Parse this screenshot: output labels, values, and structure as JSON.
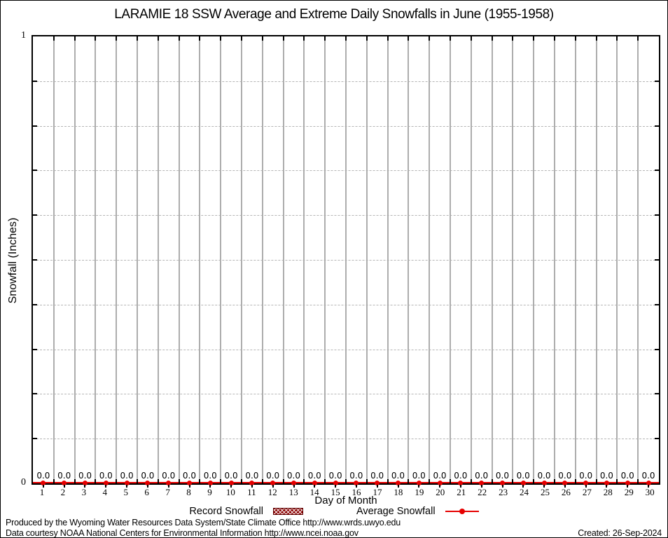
{
  "title": "LARAMIE 18 SSW Average and Extreme Daily Snowfalls in June (1955-1958)",
  "y_axis": {
    "label": "Snowfall (Inches)",
    "top_tick": "1",
    "bottom_tick": "0",
    "min": 0,
    "max": 1
  },
  "x_axis": {
    "label": "Day of Month"
  },
  "legend": {
    "record_label": "Record Snowfall",
    "average_label": "Average Snowfall"
  },
  "footer": {
    "line1": "Produced by the Wyoming Water Resources Data System/State Climate Office http://www.wrds.uwyo.edu",
    "line2": "Data courtesy NOAA National Centers for Environmental Information http://www.ncei.noaa.gov",
    "created": "Created: 26-Sep-2024"
  },
  "colors": {
    "series_red": "#e60000",
    "record_hatch": "#8b0000",
    "grid_gray": "#adadad",
    "dashed_gray": "#b6b6b6"
  },
  "chart_data": {
    "type": "line",
    "title": "LARAMIE 18 SSW Average and Extreme Daily Snowfalls in June (1955-1958)",
    "xlabel": "Day of Month",
    "ylabel": "Snowfall (Inches)",
    "ylim": [
      0,
      1
    ],
    "y_major_ticks": [
      0,
      1
    ],
    "y_grid_interval": 0.1,
    "grid": true,
    "legend_position": "bottom-center",
    "point_label_format": "0.0",
    "categories": [
      "1",
      "2",
      "3",
      "4",
      "5",
      "6",
      "7",
      "8",
      "9",
      "10",
      "11",
      "12",
      "13",
      "14",
      "15",
      "16",
      "17",
      "18",
      "19",
      "20",
      "21",
      "22",
      "23",
      "24",
      "25",
      "26",
      "27",
      "28",
      "29",
      "30"
    ],
    "series": [
      {
        "name": "Record Snowfall",
        "values": [
          0.0,
          0.0,
          0.0,
          0.0,
          0.0,
          0.0,
          0.0,
          0.0,
          0.0,
          0.0,
          0.0,
          0.0,
          0.0,
          0.0,
          0.0,
          0.0,
          0.0,
          0.0,
          0.0,
          0.0,
          0.0,
          0.0,
          0.0,
          0.0,
          0.0,
          0.0,
          0.0,
          0.0,
          0.0,
          0.0
        ]
      },
      {
        "name": "Average Snowfall",
        "values": [
          0.0,
          0.0,
          0.0,
          0.0,
          0.0,
          0.0,
          0.0,
          0.0,
          0.0,
          0.0,
          0.0,
          0.0,
          0.0,
          0.0,
          0.0,
          0.0,
          0.0,
          0.0,
          0.0,
          0.0,
          0.0,
          0.0,
          0.0,
          0.0,
          0.0,
          0.0,
          0.0,
          0.0,
          0.0,
          0.0
        ]
      }
    ]
  }
}
